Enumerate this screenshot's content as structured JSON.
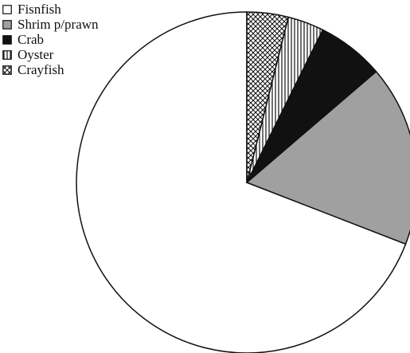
{
  "chart_data": {
    "type": "pie",
    "slices": [
      {
        "label": "Fisnfish",
        "value": 70.5,
        "fill": "#ffffff",
        "pattern": "none"
      },
      {
        "label": "Shrim p/prawn",
        "value": 17.5,
        "fill": "#a0a0a0",
        "pattern": "none"
      },
      {
        "label": "Crab",
        "value": 6.5,
        "fill": "#111111",
        "pattern": "none"
      },
      {
        "label": "Oyster",
        "value": 3.5,
        "fill": "#ffffff",
        "pattern": "vertical-lines"
      },
      {
        "label": "Crayfish",
        "value": 4.0,
        "fill": "#ffffff",
        "pattern": "crosshatch"
      }
    ],
    "legend_position": "top-left",
    "start_angle": "12 o'clock",
    "direction": "counter-clockwise"
  }
}
